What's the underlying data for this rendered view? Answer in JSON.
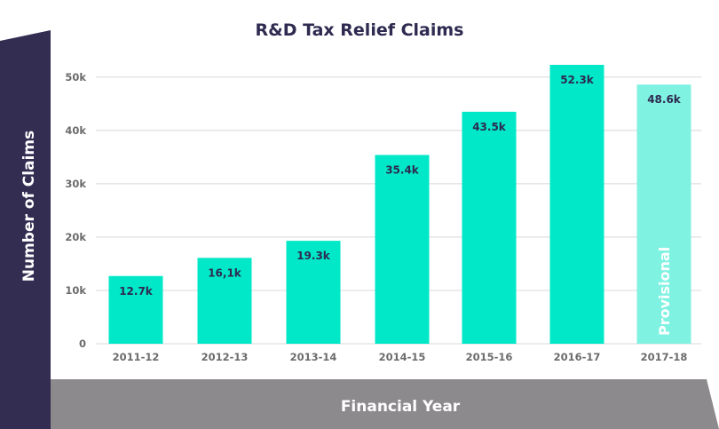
{
  "chart_data": {
    "type": "bar",
    "title": "R&D Tax Relief Claims",
    "xlabel": "Financial Year",
    "ylabel": "Number of Claims",
    "categories": [
      "2011-12",
      "2012-13",
      "2013-14",
      "2014-15",
      "2015-16",
      "2016-17",
      "2017-18"
    ],
    "values": [
      12700,
      16100,
      19300,
      35400,
      43500,
      52300,
      48600
    ],
    "data_labels": [
      "12.7k",
      "16,1k",
      "19.3k",
      "35.4k",
      "43.5k",
      "52.3k",
      "48.6k"
    ],
    "yticks": [
      0,
      10000,
      20000,
      30000,
      40000,
      50000
    ],
    "ytick_labels": [
      "0",
      "10k",
      "20k",
      "30k",
      "40k",
      "50k"
    ],
    "ylim": [
      0,
      52300
    ],
    "grid": true,
    "annotation": "Provisional",
    "provisional_index": 6,
    "colors": {
      "bar": "#00e8c8",
      "bar_provisional": "#80f2e2",
      "ylabel_band": "#332d52",
      "xlabel_band": "#8c8a8c",
      "title": "#2e2a50",
      "grid": "#d8d8d8"
    }
  }
}
